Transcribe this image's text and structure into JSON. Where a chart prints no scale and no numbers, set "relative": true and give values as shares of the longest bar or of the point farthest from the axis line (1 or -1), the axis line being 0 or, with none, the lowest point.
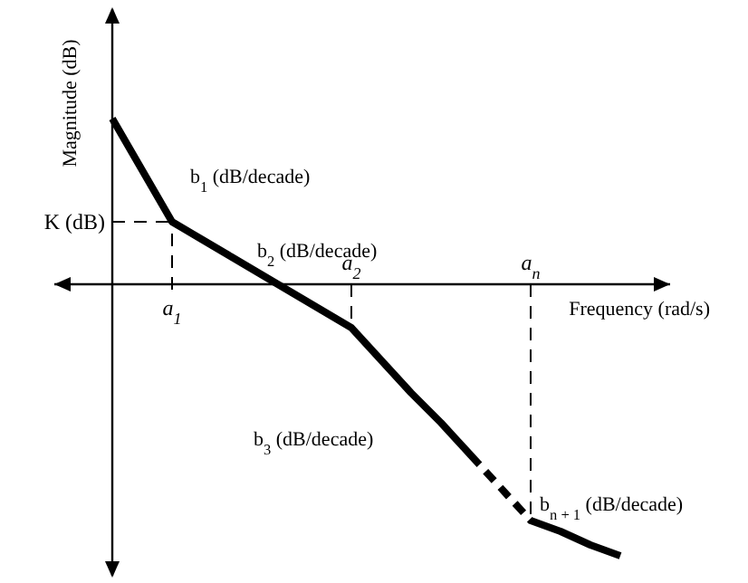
{
  "chart_data": {
    "type": "line",
    "relative": true,
    "xlabel": "Frequency (rad/s)",
    "ylabel": "Magnitude (dB)",
    "categories": [
      null,
      null,
      "a$_{1}$",
      null,
      null,
      null,
      null,
      null,
      "a$_{2}$",
      null,
      null,
      null,
      null,
      null,
      "a$_{n}$",
      null,
      null,
      null,
      null
    ],
    "series": [
      {
        "color": "#000000",
        "line_style": "dashed",
        "values": [
          0.61,
          0.42,
          0.23,
          0.165,
          0.1,
          0.035,
          -0.03,
          -0.095,
          -0.16,
          -0.28,
          -0.4,
          -0.51,
          -0.63,
          null,
          -0.87,
          -0.91,
          -0.96,
          -1,
          null
        ]
      }
    ],
    "ref_lines": [
      {
        "axis": "y",
        "value": 0.23,
        "label": "K (dB)",
        "line_style": "dashed",
        "color": "#000000"
      },
      {
        "axis": "x",
        "value": "a$_{1}$",
        "line_style": "dashed",
        "color": "#000000"
      },
      {
        "axis": "x",
        "value": "a$_{2}$",
        "line_style": "dashed",
        "color": "#000000"
      },
      {
        "axis": "x",
        "value": "a$_{n}$",
        "line_style": "dashed",
        "color": "#000000"
      }
    ],
    "annotations": [
      "b$_{1}$ (dB/decade)",
      "b$_{2}$ (dB/decade)",
      "b$_{3}$ (dB/decade)",
      "b$_{n + 1}$ (dB/decade)"
    ]
  }
}
